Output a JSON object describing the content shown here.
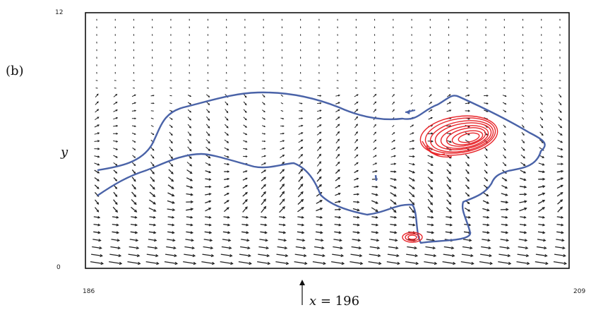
{
  "panel_label": "(b)",
  "axes": {
    "x_min_label": "186",
    "x_max_label": "209",
    "y_min_label": "0",
    "y_max_label": "12",
    "y_label": "y",
    "x_marker": {
      "var": "x",
      "eq": " = 196",
      "value": 196
    }
  },
  "colors": {
    "frame": "#111111",
    "arrows": "#222222",
    "blue_contour": "#4a63a8",
    "red_contour": "#e8262b"
  },
  "field": {
    "x_range": [
      186,
      209
    ],
    "y_range": [
      0,
      12
    ],
    "columns": 26,
    "rows": 33
  }
}
